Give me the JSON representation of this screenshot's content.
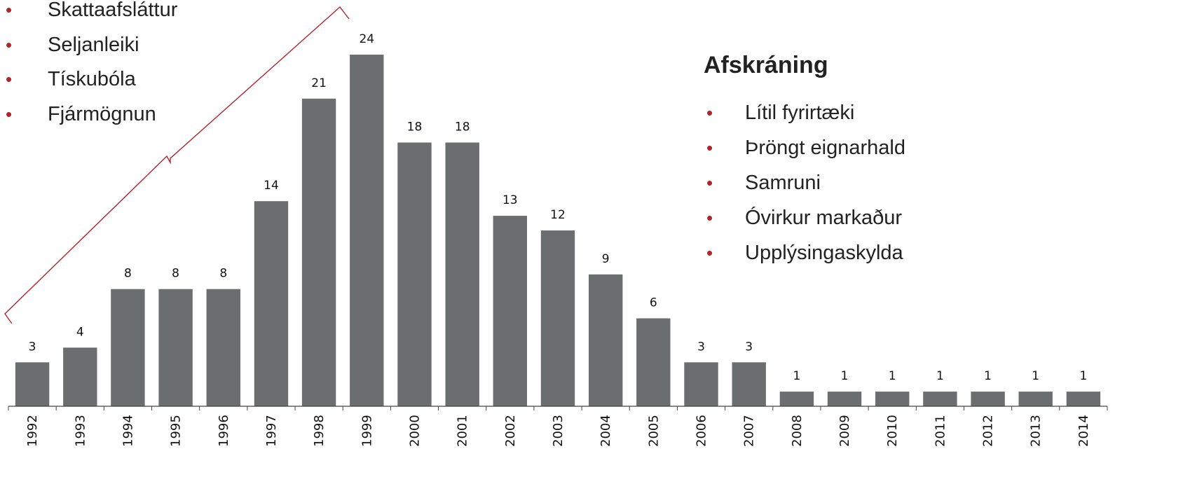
{
  "left_list": {
    "items": [
      "Skattaafsláttur",
      "Seljanleiki",
      "Tískubóla",
      "Fjármögnun"
    ]
  },
  "right_panel": {
    "heading": "Afskráning",
    "items": [
      "Lítil fyrirtæki",
      "Þröngt eignarhald",
      "Samruni",
      "Óvirkur markaður",
      "Upplýsingaskylda"
    ]
  },
  "colors": {
    "bar": "#6b6e6f",
    "bullet": "#b0252c",
    "brace": "#b0252c"
  },
  "chart_data": {
    "type": "bar",
    "categories": [
      "1992",
      "1993",
      "1994",
      "1995",
      "1996",
      "1997",
      "1998",
      "1999",
      "2000",
      "2001",
      "2002",
      "2003",
      "2004",
      "2005",
      "2006",
      "2007",
      "2008",
      "2009",
      "2010",
      "2011",
      "2012",
      "2013",
      "2014"
    ],
    "values": [
      3,
      4,
      8,
      8,
      8,
      14,
      21,
      24,
      18,
      18,
      13,
      12,
      9,
      6,
      3,
      3,
      1,
      1,
      1,
      1,
      1,
      1,
      1
    ],
    "ylim": [
      0,
      24
    ],
    "grid": false,
    "data_labels": true
  }
}
